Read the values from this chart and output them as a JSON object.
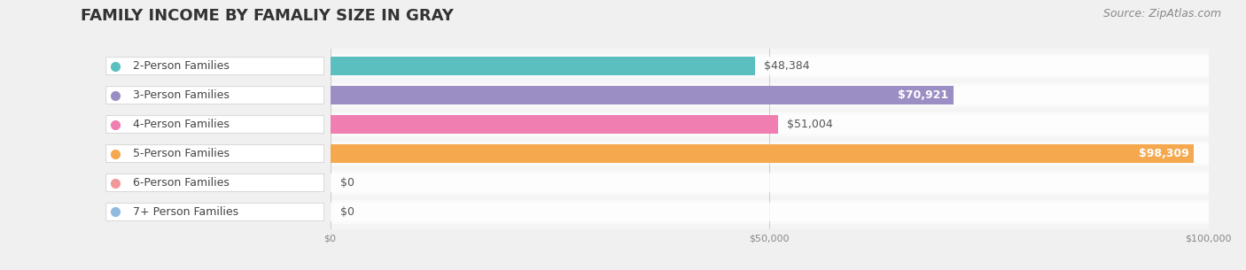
{
  "title": "FAMILY INCOME BY FAMALIY SIZE IN GRAY",
  "source": "Source: ZipAtlas.com",
  "categories": [
    "2-Person Families",
    "3-Person Families",
    "4-Person Families",
    "5-Person Families",
    "6-Person Families",
    "7+ Person Families"
  ],
  "values": [
    48384,
    70921,
    51004,
    98309,
    0,
    0
  ],
  "bar_colors": [
    "#5BBFBF",
    "#9B8EC4",
    "#F07EB0",
    "#F5A84E",
    "#F09898",
    "#92BADE"
  ],
  "label_colors": [
    "#333333",
    "#ffffff",
    "#333333",
    "#F5A84E",
    "#333333",
    "#333333"
  ],
  "bg_color": "#f0f0f0",
  "plot_bg": "#f5f5f5",
  "xmax": 100000,
  "xticks": [
    0,
    50000,
    100000
  ],
  "xtick_labels": [
    "$0",
    "$50,000",
    "$100,000"
  ],
  "value_labels": [
    "$48,384",
    "$70,921",
    "$51,004",
    "$98,309",
    "$0",
    "$0"
  ],
  "title_fontsize": 13,
  "label_fontsize": 9,
  "value_fontsize": 9,
  "source_fontsize": 9
}
